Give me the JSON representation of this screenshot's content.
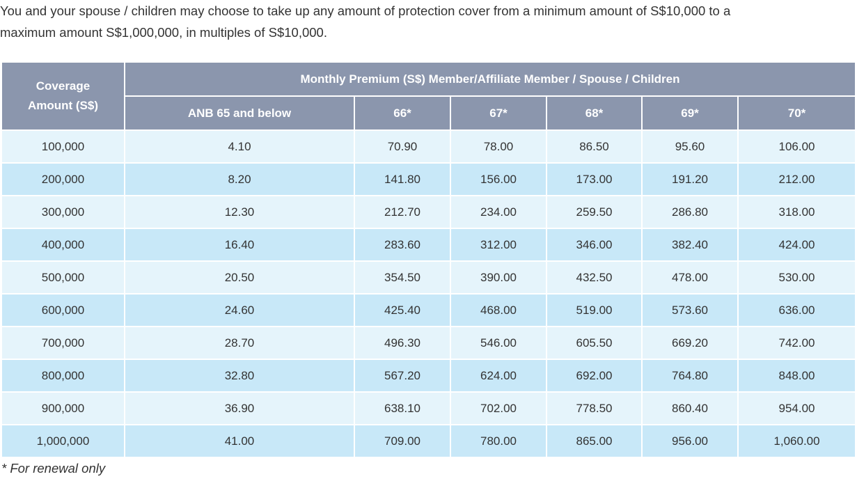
{
  "intro": {
    "lines": [
      "You and your spouse / children may choose to take up any amount of protection cover from a minimum amount of S$10,000 to a",
      "maximum amount S$1,000,000, in multiples of S$10,000."
    ]
  },
  "table": {
    "corner_header": "Coverage Amount (S$)",
    "group_header": "Monthly Premium (S$) Member/Affiliate Member / Spouse / Children",
    "columns": [
      "ANB 65 and below",
      "66*",
      "67*",
      "68*",
      "69*",
      "70*"
    ],
    "rows": [
      [
        "100,000",
        "4.10",
        "70.90",
        "78.00",
        "86.50",
        "95.60",
        "106.00"
      ],
      [
        "200,000",
        "8.20",
        "141.80",
        "156.00",
        "173.00",
        "191.20",
        "212.00"
      ],
      [
        "300,000",
        "12.30",
        "212.70",
        "234.00",
        "259.50",
        "286.80",
        "318.00"
      ],
      [
        "400,000",
        "16.40",
        "283.60",
        "312.00",
        "346.00",
        "382.40",
        "424.00"
      ],
      [
        "500,000",
        "20.50",
        "354.50",
        "390.00",
        "432.50",
        "478.00",
        "530.00"
      ],
      [
        "600,000",
        "24.60",
        "425.40",
        "468.00",
        "519.00",
        "573.60",
        "636.00"
      ],
      [
        "700,000",
        "28.70",
        "496.30",
        "546.00",
        "605.50",
        "669.20",
        "742.00"
      ],
      [
        "800,000",
        "32.80",
        "567.20",
        "624.00",
        "692.00",
        "764.80",
        "848.00"
      ],
      [
        "900,000",
        "36.90",
        "638.10",
        "702.00",
        "778.50",
        "860.40",
        "954.00"
      ],
      [
        "1,000,000",
        "41.00",
        "709.00",
        "780.00",
        "865.00",
        "956.00",
        "1,060.00"
      ]
    ]
  },
  "footnote": "* For renewal only"
}
